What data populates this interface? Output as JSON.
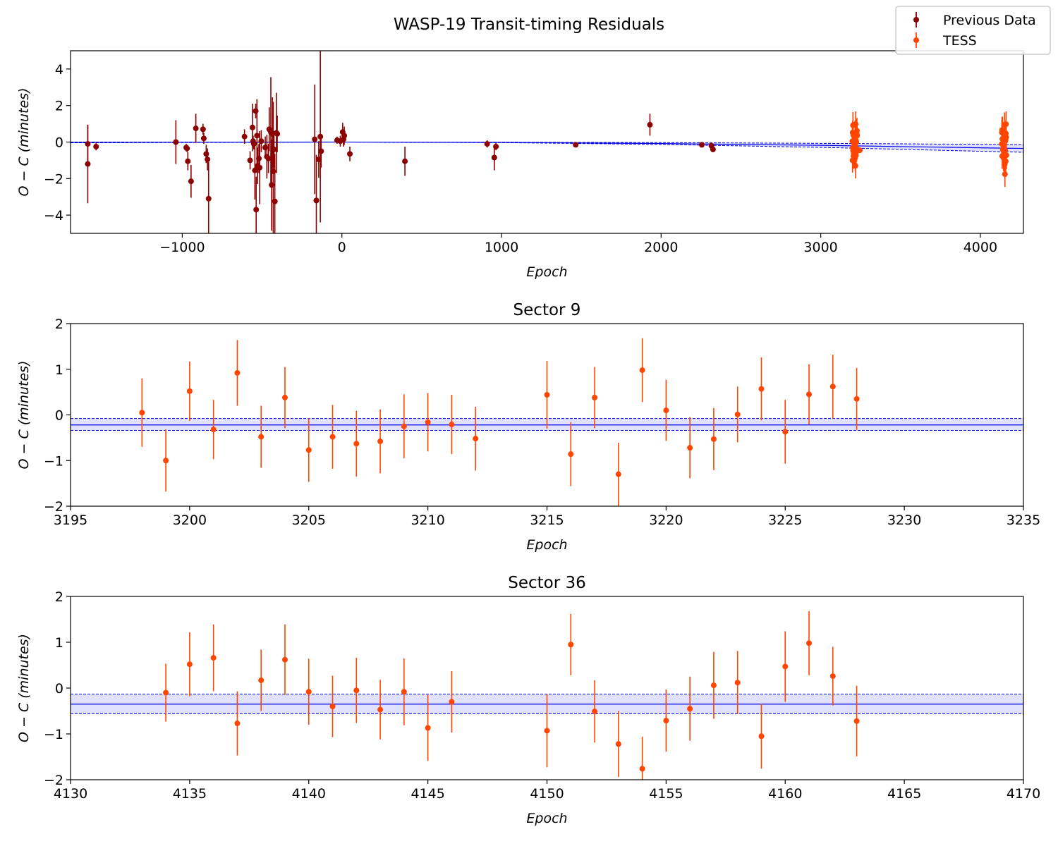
{
  "figure": {
    "title": "WASP-19 Transit-timing Residuals"
  },
  "colors": {
    "previous": "#8b0000",
    "tess": "#ff4500",
    "model_line": "#0000ee",
    "band_fill": "#d8d8ff",
    "band_edge": "#0000cc"
  },
  "legend": {
    "location": "upper-right",
    "entries": [
      {
        "label": "Previous Data",
        "series": "previous"
      },
      {
        "label": "TESS",
        "series": "tess"
      }
    ]
  },
  "chart_data": [
    {
      "type": "scatter",
      "title": "",
      "xlabel": "Epoch",
      "ylabel": "O − C (minutes)",
      "xlim": [
        -1700,
        4270
      ],
      "ylim": [
        -5,
        5
      ],
      "xticks": [
        -1000,
        0,
        1000,
        2000,
        3000,
        4000
      ],
      "xtick_labels": [
        "−1000",
        "0",
        "1000",
        "2000",
        "3000",
        "4000"
      ],
      "yticks": [
        -4,
        -2,
        0,
        2,
        4
      ],
      "ytick_labels": [
        "−4",
        "−2",
        "0",
        "2",
        "4"
      ],
      "model": {
        "x": [
          -1700,
          0,
          1000,
          2000,
          3000,
          4270
        ],
        "center": [
          -0.02,
          0.0,
          -0.02,
          -0.08,
          -0.18,
          -0.35
        ],
        "upper": [
          0.0,
          0.0,
          -0.01,
          -0.03,
          -0.07,
          -0.14
        ],
        "lower": [
          -0.04,
          0.0,
          -0.03,
          -0.13,
          -0.29,
          -0.56
        ]
      },
      "series": [
        {
          "name": "Previous Data",
          "color_key": "previous",
          "points": [
            [
              -1592,
              -0.1,
              1.05
            ],
            [
              -1592,
              -1.2,
              2.15
            ],
            [
              -1540,
              -0.25,
              0.2
            ],
            [
              -1040,
              0.0,
              1.2
            ],
            [
              -975,
              -0.3,
              0.2
            ],
            [
              -970,
              -0.35,
              0.2
            ],
            [
              -965,
              -1.05,
              0.5
            ],
            [
              -945,
              -2.15,
              0.9
            ],
            [
              -915,
              0.75,
              0.8
            ],
            [
              -870,
              0.7,
              0.3
            ],
            [
              -865,
              0.2,
              0.3
            ],
            [
              -850,
              -0.65,
              0.5
            ],
            [
              -842,
              -0.95,
              0.6
            ],
            [
              -835,
              -3.1,
              2.0
            ],
            [
              -610,
              0.3,
              0.4
            ],
            [
              -575,
              -1.0,
              0.5
            ],
            [
              -560,
              0.8,
              1.3
            ],
            [
              -556,
              0.05,
              0.3
            ],
            [
              -552,
              -0.1,
              0.3
            ],
            [
              -545,
              -1.55,
              1.6
            ],
            [
              -540,
              1.7,
              0.4
            ],
            [
              -537,
              -3.7,
              1.8
            ],
            [
              -532,
              0.35,
              2.0
            ],
            [
              -528,
              -1.3,
              1.0
            ],
            [
              -520,
              -0.9,
              0.8
            ],
            [
              -515,
              -1.4,
              2.0
            ],
            [
              -505,
              0.05,
              0.6
            ],
            [
              -480,
              -0.3,
              0.6
            ],
            [
              -470,
              -0.8,
              1.2
            ],
            [
              -460,
              -0.9,
              0.8
            ],
            [
              -455,
              0.7,
              1.2
            ],
            [
              -445,
              0.55,
              3.0
            ],
            [
              -440,
              -2.35,
              2.5
            ],
            [
              -435,
              0.45,
              2.0
            ],
            [
              -430,
              -1.6,
              3.8
            ],
            [
              -425,
              -0.4,
              1.0
            ],
            [
              -420,
              -3.25,
              2.6
            ],
            [
              -410,
              0.5,
              2.2
            ],
            [
              -405,
              0.45,
              1.0
            ],
            [
              -170,
              0.15,
              3.0
            ],
            [
              -160,
              -3.2,
              2.5
            ],
            [
              -145,
              -0.95,
              1.0
            ],
            [
              -135,
              0.3,
              4.7
            ],
            [
              -130,
              -0.5,
              0.9
            ],
            [
              -30,
              0.1,
              0.2
            ],
            [
              -10,
              0.05,
              0.3
            ],
            [
              5,
              0.55,
              0.5
            ],
            [
              10,
              0.15,
              0.4
            ],
            [
              15,
              0.35,
              0.5
            ],
            [
              50,
              -0.65,
              0.4
            ],
            [
              395,
              -1.05,
              0.8
            ],
            [
              910,
              -0.1,
              0.2
            ],
            [
              955,
              -0.85,
              0.7
            ],
            [
              965,
              -0.25,
              0.2
            ],
            [
              1465,
              -0.15,
              0.1
            ],
            [
              1930,
              0.95,
              0.6
            ],
            [
              2255,
              -0.15,
              0.15
            ],
            [
              2315,
              -0.2,
              0.15
            ],
            [
              2325,
              -0.4,
              0.15
            ]
          ]
        },
        {
          "name": "TESS",
          "color_key": "tess",
          "ref": [
            "sector9",
            "sector36"
          ],
          "extra_points": [
            [
              3245,
              -0.45,
              0.1
            ]
          ]
        }
      ]
    },
    {
      "type": "scatter",
      "title": "Sector 9",
      "xlabel": "Epoch",
      "ylabel": "O − C (minutes)",
      "xlim": [
        3195,
        3235
      ],
      "ylim": [
        -2,
        2
      ],
      "xticks": [
        3195,
        3200,
        3205,
        3210,
        3215,
        3220,
        3225,
        3230,
        3235
      ],
      "xtick_labels": [
        "3195",
        "3200",
        "3205",
        "3210",
        "3215",
        "3220",
        "3225",
        "3230",
        "3235"
      ],
      "yticks": [
        -2,
        -1,
        0,
        1,
        2
      ],
      "ytick_labels": [
        "−2",
        "−1",
        "0",
        "1",
        "2"
      ],
      "model": {
        "x": [
          3195,
          3235
        ],
        "center": [
          -0.22,
          -0.22
        ],
        "upper": [
          -0.08,
          -0.08
        ],
        "lower": [
          -0.34,
          -0.34
        ]
      },
      "series": [
        {
          "name": "TESS",
          "color_key": "tess",
          "points": [
            [
              3198,
              0.05,
              0.75
            ],
            [
              3199,
              -1.0,
              0.68
            ],
            [
              3200,
              0.52,
              0.65
            ],
            [
              3201,
              -0.32,
              0.65
            ],
            [
              3202,
              0.92,
              0.72
            ],
            [
              3203,
              -0.48,
              0.68
            ],
            [
              3204,
              0.38,
              0.67
            ],
            [
              3205,
              -0.77,
              0.7
            ],
            [
              3206,
              -0.48,
              0.7
            ],
            [
              3207,
              -0.63,
              0.72
            ],
            [
              3208,
              -0.58,
              0.7
            ],
            [
              3209,
              -0.25,
              0.7
            ],
            [
              3210,
              -0.16,
              0.64
            ],
            [
              3211,
              -0.21,
              0.65
            ],
            [
              3212,
              -0.52,
              0.7
            ],
            [
              3215,
              0.44,
              0.74
            ],
            [
              3216,
              -0.86,
              0.7
            ],
            [
              3217,
              0.38,
              0.67
            ],
            [
              3218,
              -1.3,
              0.69
            ],
            [
              3219,
              0.98,
              0.7
            ],
            [
              3220,
              0.1,
              0.67
            ],
            [
              3221,
              -0.72,
              0.67
            ],
            [
              3222,
              -0.53,
              0.68
            ],
            [
              3223,
              0.01,
              0.61
            ],
            [
              3224,
              0.57,
              0.69
            ],
            [
              3225,
              -0.37,
              0.7
            ],
            [
              3226,
              0.45,
              0.66
            ],
            [
              3227,
              0.62,
              0.7
            ],
            [
              3228,
              0.35,
              0.68
            ]
          ]
        }
      ]
    },
    {
      "type": "scatter",
      "title": "Sector 36",
      "xlabel": "Epoch",
      "ylabel": "O − C (minutes)",
      "xlim": [
        4130,
        4170
      ],
      "ylim": [
        -2,
        2
      ],
      "xticks": [
        4130,
        4135,
        4140,
        4145,
        4150,
        4155,
        4160,
        4165,
        4170
      ],
      "xtick_labels": [
        "4130",
        "4135",
        "4140",
        "4145",
        "4150",
        "4155",
        "4160",
        "4165",
        "4170"
      ],
      "yticks": [
        -2,
        -1,
        0,
        1,
        2
      ],
      "ytick_labels": [
        "−2",
        "−1",
        "0",
        "1",
        "2"
      ],
      "model": {
        "x": [
          4130,
          4170
        ],
        "center": [
          -0.35,
          -0.35
        ],
        "upper": [
          -0.13,
          -0.13
        ],
        "lower": [
          -0.56,
          -0.56
        ]
      },
      "series": [
        {
          "name": "TESS",
          "color_key": "tess",
          "points": [
            [
              4134,
              -0.1,
              0.63
            ],
            [
              4135,
              0.52,
              0.7
            ],
            [
              4136,
              0.66,
              0.73
            ],
            [
              4137,
              -0.77,
              0.7
            ],
            [
              4138,
              0.17,
              0.67
            ],
            [
              4139,
              0.62,
              0.77
            ],
            [
              4140,
              -0.08,
              0.72
            ],
            [
              4141,
              -0.4,
              0.67
            ],
            [
              4142,
              -0.05,
              0.71
            ],
            [
              4143,
              -0.47,
              0.65
            ],
            [
              4144,
              -0.08,
              0.73
            ],
            [
              4145,
              -0.87,
              0.72
            ],
            [
              4146,
              -0.3,
              0.67
            ],
            [
              4150,
              -0.93,
              0.8
            ],
            [
              4151,
              0.95,
              0.67
            ],
            [
              4152,
              -0.51,
              0.68
            ],
            [
              4153,
              -1.22,
              0.72
            ],
            [
              4154,
              -1.76,
              0.7
            ],
            [
              4155,
              -0.71,
              0.68
            ],
            [
              4156,
              -0.45,
              0.7
            ],
            [
              4157,
              0.06,
              0.73
            ],
            [
              4158,
              0.12,
              0.69
            ],
            [
              4159,
              -1.05,
              0.71
            ],
            [
              4160,
              0.47,
              0.77
            ],
            [
              4161,
              0.98,
              0.7
            ],
            [
              4162,
              0.26,
              0.64
            ],
            [
              4163,
              -0.72,
              0.77
            ]
          ]
        }
      ]
    }
  ]
}
